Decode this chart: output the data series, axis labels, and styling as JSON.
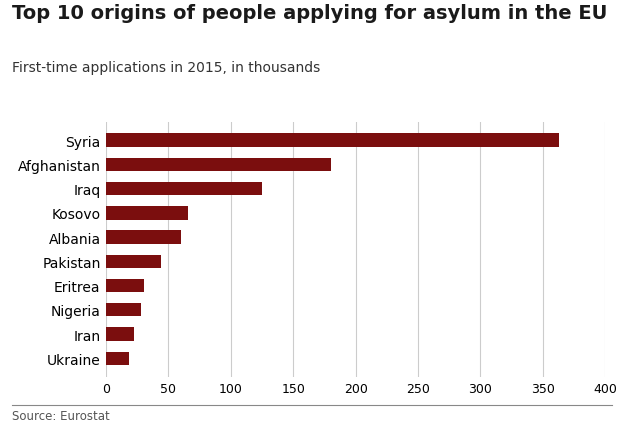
{
  "title": "Top 10 origins of people applying for asylum in the EU",
  "subtitle": "First-time applications in 2015, in thousands",
  "source": "Source: Eurostat",
  "categories": [
    "Ukraine",
    "Iran",
    "Nigeria",
    "Eritrea",
    "Pakistan",
    "Albania",
    "Kosovo",
    "Iraq",
    "Afghanistan",
    "Syria"
  ],
  "values": [
    18,
    22,
    28,
    30,
    44,
    60,
    66,
    125,
    180,
    363
  ],
  "bar_color": "#7b0e0e",
  "background_color": "#ffffff",
  "xlim": [
    0,
    400
  ],
  "xticks": [
    0,
    50,
    100,
    150,
    200,
    250,
    300,
    350,
    400
  ],
  "grid_color": "#cccccc",
  "title_fontsize": 14,
  "subtitle_fontsize": 10,
  "source_fontsize": 8.5,
  "tick_fontsize": 9,
  "label_fontsize": 10
}
